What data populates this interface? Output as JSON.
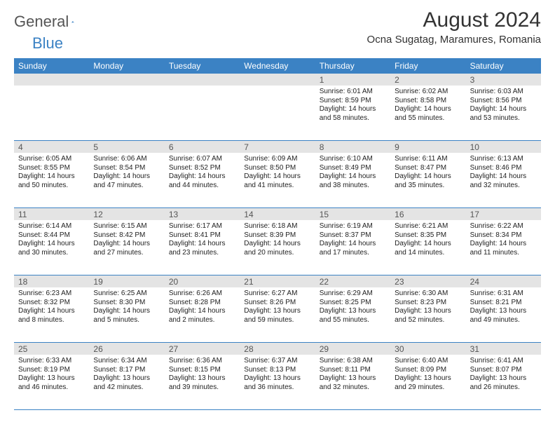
{
  "brand": {
    "text1": "General",
    "text2": "Blue"
  },
  "colors": {
    "accent": "#3b82c4",
    "shade": "#e4e4e4",
    "text": "#222222"
  },
  "title": "August 2024",
  "location": "Ocna Sugatag, Maramures, Romania",
  "dayNames": [
    "Sunday",
    "Monday",
    "Tuesday",
    "Wednesday",
    "Thursday",
    "Friday",
    "Saturday"
  ],
  "weeks": [
    [
      null,
      null,
      null,
      null,
      {
        "n": "1",
        "sr": "6:01 AM",
        "ss": "8:59 PM",
        "dl": "14 hours and 58 minutes."
      },
      {
        "n": "2",
        "sr": "6:02 AM",
        "ss": "8:58 PM",
        "dl": "14 hours and 55 minutes."
      },
      {
        "n": "3",
        "sr": "6:03 AM",
        "ss": "8:56 PM",
        "dl": "14 hours and 53 minutes."
      }
    ],
    [
      {
        "n": "4",
        "sr": "6:05 AM",
        "ss": "8:55 PM",
        "dl": "14 hours and 50 minutes."
      },
      {
        "n": "5",
        "sr": "6:06 AM",
        "ss": "8:54 PM",
        "dl": "14 hours and 47 minutes."
      },
      {
        "n": "6",
        "sr": "6:07 AM",
        "ss": "8:52 PM",
        "dl": "14 hours and 44 minutes."
      },
      {
        "n": "7",
        "sr": "6:09 AM",
        "ss": "8:50 PM",
        "dl": "14 hours and 41 minutes."
      },
      {
        "n": "8",
        "sr": "6:10 AM",
        "ss": "8:49 PM",
        "dl": "14 hours and 38 minutes."
      },
      {
        "n": "9",
        "sr": "6:11 AM",
        "ss": "8:47 PM",
        "dl": "14 hours and 35 minutes."
      },
      {
        "n": "10",
        "sr": "6:13 AM",
        "ss": "8:46 PM",
        "dl": "14 hours and 32 minutes."
      }
    ],
    [
      {
        "n": "11",
        "sr": "6:14 AM",
        "ss": "8:44 PM",
        "dl": "14 hours and 30 minutes."
      },
      {
        "n": "12",
        "sr": "6:15 AM",
        "ss": "8:42 PM",
        "dl": "14 hours and 27 minutes."
      },
      {
        "n": "13",
        "sr": "6:17 AM",
        "ss": "8:41 PM",
        "dl": "14 hours and 23 minutes."
      },
      {
        "n": "14",
        "sr": "6:18 AM",
        "ss": "8:39 PM",
        "dl": "14 hours and 20 minutes."
      },
      {
        "n": "15",
        "sr": "6:19 AM",
        "ss": "8:37 PM",
        "dl": "14 hours and 17 minutes."
      },
      {
        "n": "16",
        "sr": "6:21 AM",
        "ss": "8:35 PM",
        "dl": "14 hours and 14 minutes."
      },
      {
        "n": "17",
        "sr": "6:22 AM",
        "ss": "8:34 PM",
        "dl": "14 hours and 11 minutes."
      }
    ],
    [
      {
        "n": "18",
        "sr": "6:23 AM",
        "ss": "8:32 PM",
        "dl": "14 hours and 8 minutes."
      },
      {
        "n": "19",
        "sr": "6:25 AM",
        "ss": "8:30 PM",
        "dl": "14 hours and 5 minutes."
      },
      {
        "n": "20",
        "sr": "6:26 AM",
        "ss": "8:28 PM",
        "dl": "14 hours and 2 minutes."
      },
      {
        "n": "21",
        "sr": "6:27 AM",
        "ss": "8:26 PM",
        "dl": "13 hours and 59 minutes."
      },
      {
        "n": "22",
        "sr": "6:29 AM",
        "ss": "8:25 PM",
        "dl": "13 hours and 55 minutes."
      },
      {
        "n": "23",
        "sr": "6:30 AM",
        "ss": "8:23 PM",
        "dl": "13 hours and 52 minutes."
      },
      {
        "n": "24",
        "sr": "6:31 AM",
        "ss": "8:21 PM",
        "dl": "13 hours and 49 minutes."
      }
    ],
    [
      {
        "n": "25",
        "sr": "6:33 AM",
        "ss": "8:19 PM",
        "dl": "13 hours and 46 minutes."
      },
      {
        "n": "26",
        "sr": "6:34 AM",
        "ss": "8:17 PM",
        "dl": "13 hours and 42 minutes."
      },
      {
        "n": "27",
        "sr": "6:36 AM",
        "ss": "8:15 PM",
        "dl": "13 hours and 39 minutes."
      },
      {
        "n": "28",
        "sr": "6:37 AM",
        "ss": "8:13 PM",
        "dl": "13 hours and 36 minutes."
      },
      {
        "n": "29",
        "sr": "6:38 AM",
        "ss": "8:11 PM",
        "dl": "13 hours and 32 minutes."
      },
      {
        "n": "30",
        "sr": "6:40 AM",
        "ss": "8:09 PM",
        "dl": "13 hours and 29 minutes."
      },
      {
        "n": "31",
        "sr": "6:41 AM",
        "ss": "8:07 PM",
        "dl": "13 hours and 26 minutes."
      }
    ]
  ],
  "labels": {
    "sunrise": "Sunrise: ",
    "sunset": "Sunset: ",
    "daylight": "Daylight: "
  }
}
